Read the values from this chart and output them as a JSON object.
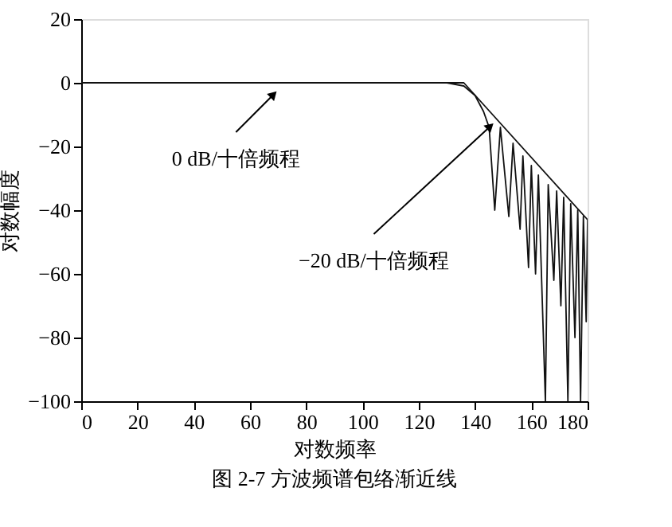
{
  "chart_data": {
    "type": "line",
    "title": "图 2-7 方波频谱包络渐近线",
    "xlabel": "对数频率",
    "ylabel": "对数幅度",
    "xlim": [
      0,
      180
    ],
    "xticks": [
      0,
      20,
      40,
      60,
      80,
      100,
      120,
      140,
      160,
      180
    ],
    "ylim": [
      -100,
      20
    ],
    "yticks": [
      -100,
      -80,
      -60,
      -40,
      -20,
      0,
      20
    ],
    "grid": false,
    "line_style": "solid",
    "series": [
      {
        "color": "#111111",
        "x": [
          0,
          130,
          136,
          140,
          143,
          145,
          147,
          149,
          152,
          153.5,
          156,
          157,
          159,
          160,
          161.5,
          162.5,
          165,
          166,
          168,
          169,
          170.5,
          171.5,
          173,
          174,
          175.5,
          176.5,
          177.5,
          178.5,
          179.5,
          180
        ],
        "values": [
          0,
          0,
          -1,
          -4,
          -9,
          -14,
          -40,
          -14,
          -42,
          -19,
          -46,
          -23,
          -58,
          -26,
          -60,
          -29,
          -100,
          -32,
          -62,
          -34,
          -70,
          -36,
          -100,
          -38,
          -80,
          -40,
          -100,
          -42,
          -75,
          -43
        ]
      },
      {
        "color": "#111111",
        "x": [
          0,
          136,
          180
        ],
        "values": [
          0,
          0,
          -43
        ]
      }
    ],
    "annotations": [
      {
        "text": "0 dB/十倍频程",
        "x": 68,
        "y": -4
      },
      {
        "text": "−20 dB/十倍频程",
        "x": 145,
        "y": -14
      }
    ]
  }
}
